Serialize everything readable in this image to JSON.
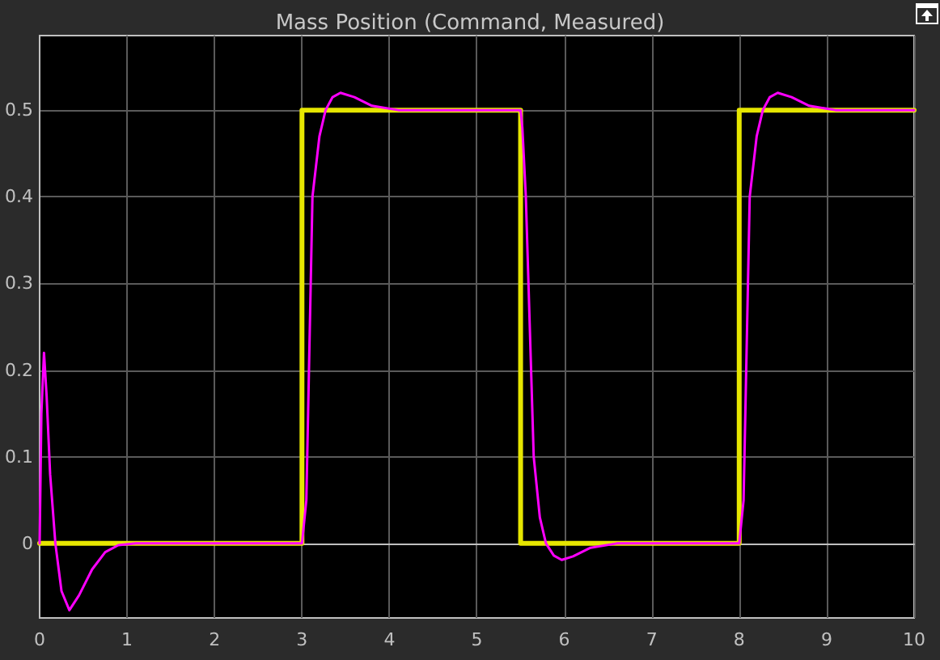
{
  "chart_data": {
    "type": "line",
    "title": "Mass Position (Command, Measured)",
    "xlim": [
      0,
      10
    ],
    "xticks": [
      0,
      1,
      2,
      3,
      4,
      5,
      6,
      7,
      8,
      9,
      10
    ],
    "ylim": [
      -0.086,
      0.586
    ],
    "yticks": [
      0,
      0.1,
      0.2,
      0.3,
      0.4,
      0.5
    ],
    "grid": true,
    "marker": "none",
    "line_style": "solid",
    "series": [
      {
        "color": "#e6e600",
        "x": [
          0,
          3,
          3,
          5.5,
          5.5,
          8,
          8,
          10
        ],
        "values": [
          0,
          0,
          0.5,
          0.5,
          0,
          0,
          0.5,
          0.5
        ]
      },
      {
        "color": "#ff00ff",
        "x": [
          0,
          0.02,
          0.05,
          0.08,
          0.12,
          0.18,
          0.25,
          0.34,
          0.45,
          0.6,
          0.75,
          0.9,
          1.1,
          3,
          3.05,
          3.12,
          3.2,
          3.27,
          3.35,
          3.44,
          3.6,
          3.8,
          4.1,
          5.5,
          5.52,
          5.56,
          5.65,
          5.72,
          5.79,
          5.88,
          5.97,
          6.1,
          6.3,
          6.6,
          8,
          8.05,
          8.12,
          8.2,
          8.27,
          8.35,
          8.44,
          8.6,
          8.8,
          9.1,
          10
        ],
        "values": [
          0,
          0.15,
          0.22,
          0.17,
          0.08,
          0,
          -0.055,
          -0.077,
          -0.06,
          -0.03,
          -0.01,
          -0.002,
          0,
          0,
          0.05,
          0.4,
          0.47,
          0.5,
          0.515,
          0.52,
          0.515,
          0.505,
          0.5,
          0.5,
          0.48,
          0.4,
          0.1,
          0.03,
          0,
          -0.014,
          -0.019,
          -0.015,
          -0.005,
          0,
          0,
          0.05,
          0.4,
          0.47,
          0.5,
          0.515,
          0.52,
          0.515,
          0.505,
          0.5,
          0.5
        ]
      }
    ]
  }
}
